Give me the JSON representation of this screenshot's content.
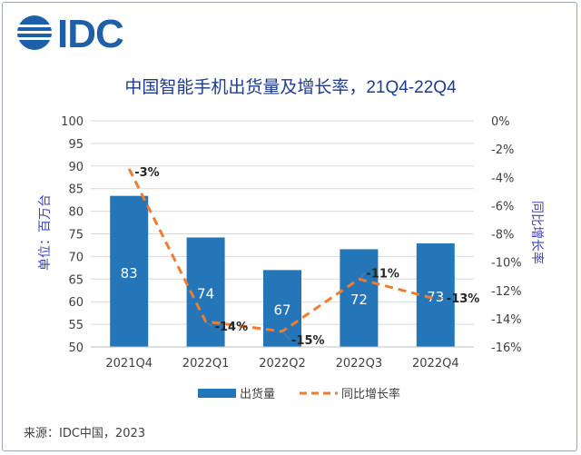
{
  "brand": {
    "logo_text": "IDC",
    "logo_color": "#1d5fa8"
  },
  "source_text": "来源：IDC中国，2023",
  "colors": {
    "bar": "#2576b8",
    "line": "#ed7d31",
    "title": "#1f3a8f",
    "axis_text": "#404040",
    "grid": "#d9d9d9",
    "axis_title": "#3c46b4"
  },
  "chart_data": {
    "type": "bar",
    "title": "中国智能手机出货量及增长率，21Q4-22Q4",
    "categories": [
      "2021Q4",
      "2022Q1",
      "2022Q2",
      "2022Q3",
      "2022Q4"
    ],
    "series": [
      {
        "name": "出货量",
        "type": "bar",
        "axis": "left",
        "values": [
          83,
          74,
          67,
          72,
          73
        ],
        "precise_values": [
          83.4,
          74.2,
          67.0,
          71.6,
          72.9
        ],
        "labels": [
          "83",
          "74",
          "67",
          "72",
          "73"
        ]
      },
      {
        "name": "同比增长率",
        "type": "line",
        "style": "dashed",
        "axis": "right",
        "values": [
          -3,
          -14,
          -15,
          -11,
          -13
        ],
        "precise_values": [
          -3.4,
          -14.2,
          -14.9,
          -11.2,
          -12.6
        ],
        "labels": [
          "-3%",
          "-14%",
          "-15%",
          "-11%",
          "-13%"
        ]
      }
    ],
    "ylabel": "单位：百万台",
    "ylim": [
      50,
      100
    ],
    "yticks": [
      "50",
      "55",
      "60",
      "65",
      "70",
      "75",
      "80",
      "85",
      "90",
      "95",
      "100"
    ],
    "y2label": "同比增长率",
    "y2lim": [
      -16,
      0
    ],
    "y2ticks": [
      "0%",
      "-2%",
      "-4%",
      "-6%",
      "-8%",
      "-10%",
      "-12%",
      "-14%",
      "-16%"
    ],
    "grid": true,
    "legend": "bottom-center",
    "legend_entries": [
      "出货量",
      "同比增长率"
    ]
  }
}
